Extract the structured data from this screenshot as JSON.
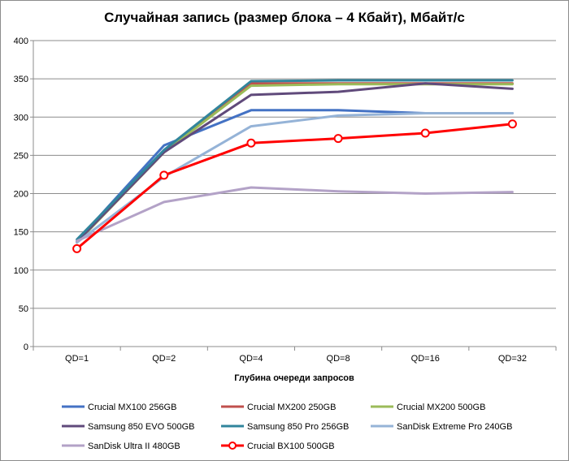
{
  "chart_data": {
    "type": "line",
    "title": "Случайная запись (размер блока – 4 Кбайт), Мбайт/с",
    "xlabel": "Глубина очереди запросов",
    "ylabel": "",
    "categories": [
      "QD=1",
      "QD=2",
      "QD=4",
      "QD=8",
      "QD=16",
      "QD=32"
    ],
    "ylim": [
      0,
      400
    ],
    "yticks": [
      0,
      50,
      100,
      150,
      200,
      250,
      300,
      350,
      400
    ],
    "grid": "horizontal",
    "legend_position": "bottom",
    "series": [
      {
        "name": "Crucial MX100 256GB",
        "color": "#4472c4",
        "marker": "none",
        "values": [
          138,
          263,
          309,
          309,
          305,
          305
        ]
      },
      {
        "name": "Crucial MX200 250GB",
        "color": "#c0504d",
        "marker": "none",
        "values": [
          136,
          254,
          344,
          344,
          344,
          344
        ]
      },
      {
        "name": "Crucial MX200 500GB",
        "color": "#9bbb59",
        "marker": "none",
        "values": [
          136,
          254,
          341,
          343,
          343,
          343
        ]
      },
      {
        "name": "Samsung 850 EVO 500GB",
        "color": "#604a7b",
        "marker": "none",
        "values": [
          137,
          254,
          329,
          333,
          344,
          337
        ]
      },
      {
        "name": "Samsung 850 Pro 256GB",
        "color": "#31859c",
        "marker": "none",
        "values": [
          140,
          257,
          347,
          348,
          348,
          348
        ]
      },
      {
        "name": "SanDisk Extreme Pro 240GB",
        "color": "#95b3d7",
        "marker": "none",
        "values": [
          136,
          222,
          288,
          302,
          305,
          305
        ]
      },
      {
        "name": "SanDisk Ultra II 480GB",
        "color": "#b3a2c7",
        "marker": "none",
        "values": [
          138,
          189,
          208,
          203,
          200,
          202
        ]
      },
      {
        "name": "Crucial BX100 500GB",
        "color": "#ff0000",
        "marker": "circle",
        "values": [
          128,
          224,
          266,
          272,
          279,
          291
        ]
      }
    ]
  }
}
